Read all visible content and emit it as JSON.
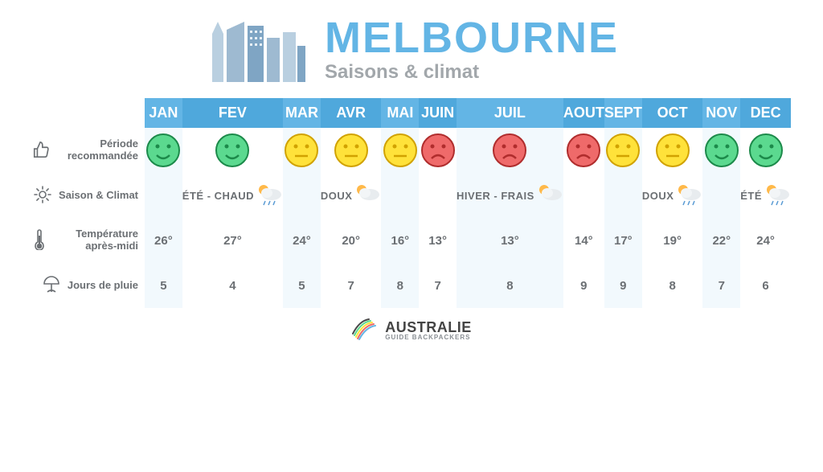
{
  "colors": {
    "title": "#63b5e5",
    "subtitle": "#a2a7ab",
    "headerBg": "#63b5e5",
    "altHeaderBg": "#4fa8dc",
    "cellBg": "#f2f9fd",
    "cellAltBg": "#ffffff",
    "text": "#6b6f73",
    "smiley_green_fill": "#5bd98f",
    "smiley_green_stroke": "#1c8a4a",
    "smiley_yellow_fill": "#ffe23a",
    "smiley_yellow_stroke": "#d1a200",
    "smiley_red_fill": "#ef6a6a",
    "smiley_red_stroke": "#b02d2d"
  },
  "header": {
    "title": "MELBOURNE",
    "subtitle": "Saisons & climat"
  },
  "months": [
    "JAN",
    "FEV",
    "MAR",
    "AVR",
    "MAI",
    "JUIN",
    "JUIL",
    "AOUT",
    "SEPT",
    "OCT",
    "NOV",
    "DEC"
  ],
  "rows": {
    "recommended": {
      "label": "Période recommandée",
      "faces": [
        "happy",
        "happy",
        "neutral",
        "neutral",
        "neutral",
        "sad",
        "sad",
        "sad",
        "neutral",
        "neutral",
        "happy",
        "happy"
      ]
    },
    "climate": {
      "label": "Saison & Climat",
      "segments": [
        {
          "label": "ÉTÉ - CHAUD",
          "start": 0,
          "end": 2,
          "icon": "rain-sun"
        },
        {
          "label": "DOUX",
          "start": 3,
          "end": 4,
          "icon": "sun-cloud"
        },
        {
          "label": "HIVER - FRAIS",
          "start": 5,
          "end": 8,
          "icon": "sun-cloud"
        },
        {
          "label": "DOUX",
          "start": 9,
          "end": 10,
          "icon": "rain-sun"
        },
        {
          "label": "ÉTÉ",
          "start": 11,
          "end": 11,
          "icon": "rain-sun"
        }
      ]
    },
    "temperature": {
      "label": "Température après-midi",
      "values": [
        "26°",
        "27°",
        "24°",
        "20°",
        "16°",
        "13°",
        "13°",
        "14°",
        "17°",
        "19°",
        "22°",
        "24°"
      ]
    },
    "rain": {
      "label": "Jours de pluie",
      "values": [
        "5",
        "4",
        "5",
        "7",
        "8",
        "7",
        "8",
        "9",
        "9",
        "8",
        "7",
        "6"
      ]
    }
  },
  "footer": {
    "brand": "AUSTRALIE",
    "sub": "GUIDE BACKPACKERS"
  }
}
